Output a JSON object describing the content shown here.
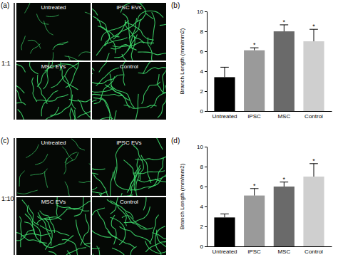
{
  "chart_data": [
    {
      "type": "bar",
      "panel_label": "(b)",
      "y_label": "Branch Length (mm/mm2)",
      "categories": [
        "Untreated",
        "iPSC",
        "MSC",
        "Control"
      ],
      "values": [
        3.4,
        6.1,
        8.0,
        7.0
      ],
      "errors": [
        1.0,
        0.25,
        0.65,
        1.2
      ],
      "annotations": [
        null,
        "*",
        "*",
        "*"
      ],
      "colors": [
        "#000000",
        "#9a9a9a",
        "#6a6a6a",
        "#cfcfcf"
      ],
      "ylim": [
        0,
        10
      ],
      "yticks": [
        0,
        2,
        4,
        6,
        8,
        10
      ]
    },
    {
      "type": "bar",
      "panel_label": "(d)",
      "y_label": "Branch Length (mm/mm2)",
      "categories": [
        "Untreated",
        "iPSC",
        "MSC",
        "Control"
      ],
      "values": [
        2.9,
        5.1,
        6.0,
        7.0
      ],
      "errors": [
        0.35,
        0.7,
        0.45,
        1.3
      ],
      "annotations": [
        null,
        "*",
        "*",
        "*"
      ],
      "colors": [
        "#000000",
        "#9a9a9a",
        "#6a6a6a",
        "#cfcfcf"
      ],
      "ylim": [
        0,
        10
      ],
      "yticks": [
        0,
        2,
        4,
        6,
        8,
        10
      ]
    }
  ],
  "image_panels": [
    {
      "panel_label": "(a)",
      "ratio": "1:1",
      "images": [
        "Untreated",
        "iPSC EVs",
        "MSC EVs",
        "Control"
      ]
    },
    {
      "panel_label": "(c)",
      "ratio": "1:10",
      "images": [
        "Untreated",
        "iPSC EVs",
        "MSC EVs",
        "Control"
      ]
    }
  ]
}
